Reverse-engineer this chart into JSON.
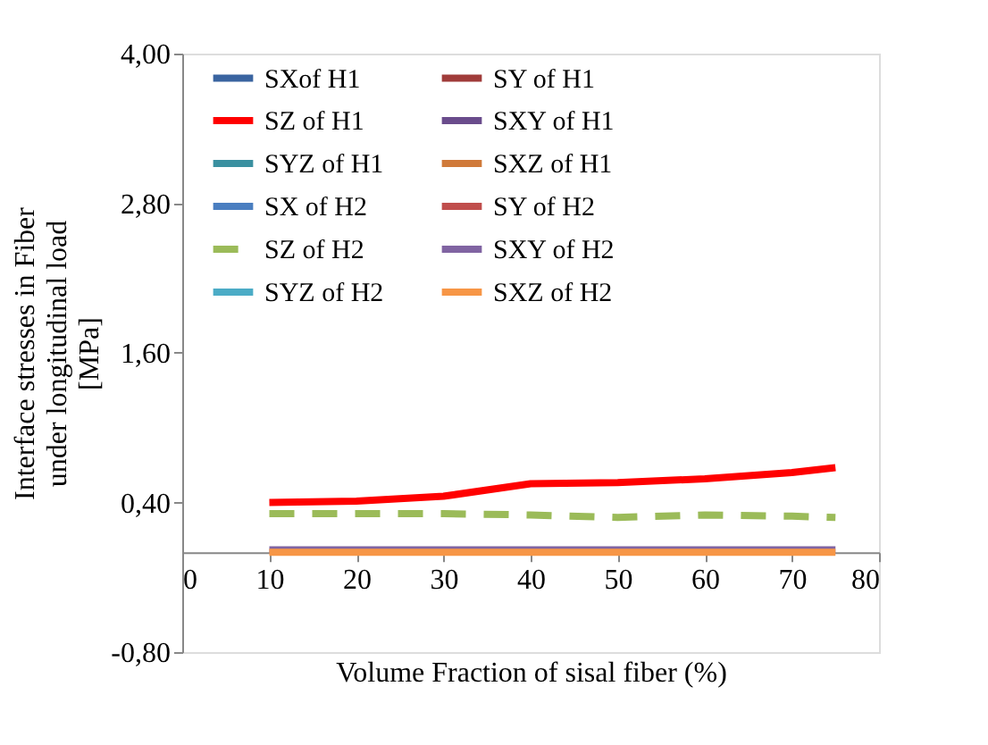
{
  "chart_data": {
    "type": "line",
    "xlabel": "Volume Fraction of sisal fiber (%)",
    "ylabel": "Interface stresses in Fiber under longitudinal load [MPa]",
    "x": [
      10,
      20,
      30,
      40,
      50,
      60,
      70,
      75
    ],
    "xlim": [
      0,
      80
    ],
    "xticks": [
      0,
      10,
      20,
      30,
      40,
      50,
      60,
      70,
      80
    ],
    "ylim": [
      -0.8,
      4.0
    ],
    "yticks": [
      {
        "value": -0.8,
        "label": "-0,80"
      },
      {
        "value": 0.4,
        "label": "0,40"
      },
      {
        "value": 1.6,
        "label": "1,60"
      },
      {
        "value": 2.8,
        "label": "2,80"
      },
      {
        "value": 4.0,
        "label": "4,00"
      }
    ],
    "grid": false,
    "legend": "top",
    "marker": "none",
    "series": [
      {
        "name": "SXof H1",
        "color": "#3a64a0",
        "values": [
          null,
          null,
          null,
          null,
          null,
          null,
          null,
          null
        ]
      },
      {
        "name": "SY of H1",
        "color": "#a03c3a",
        "values": [
          null,
          null,
          null,
          null,
          null,
          null,
          null,
          null
        ]
      },
      {
        "name": "SZ   of H1",
        "color": "#ff0000",
        "values": [
          0.4,
          0.41,
          0.45,
          0.55,
          0.56,
          0.59,
          0.64,
          0.68
        ]
      },
      {
        "name": "SXY of H1",
        "color": "#6a4c8c",
        "values": [
          null,
          null,
          null,
          null,
          null,
          null,
          null,
          null
        ]
      },
      {
        "name": "SYZ  of H1",
        "color": "#3a90a0",
        "values": [
          null,
          null,
          null,
          null,
          null,
          null,
          null,
          null
        ]
      },
      {
        "name": "SXZ of H1",
        "color": "#d07a3a",
        "values": [
          null,
          null,
          null,
          null,
          null,
          null,
          null,
          null
        ]
      },
      {
        "name": "SX of H2",
        "color": "#4a7ec0",
        "values": [
          null,
          null,
          null,
          null,
          null,
          null,
          null,
          null
        ]
      },
      {
        "name": "SY  of H2",
        "color": "#c04e4c",
        "values": [
          null,
          null,
          null,
          null,
          null,
          null,
          null,
          null
        ]
      },
      {
        "name": "SZ  of H2",
        "color": "#9bbb59",
        "line_style": "dashed",
        "values": [
          0.31,
          0.31,
          0.31,
          0.3,
          0.28,
          0.3,
          0.29,
          0.28
        ]
      },
      {
        "name": "SXY of H2",
        "color": "#8064a2",
        "values": [
          0.02,
          0.02,
          0.02,
          0.02,
          0.02,
          0.02,
          0.02,
          0.02
        ]
      },
      {
        "name": "SYZ of H2",
        "color": "#4bacc6",
        "values": [
          null,
          null,
          null,
          null,
          null,
          null,
          null,
          null
        ]
      },
      {
        "name": "SXZ of H2",
        "color": "#f79646",
        "values": [
          0.0,
          0.0,
          0.0,
          0.0,
          0.0,
          0.0,
          0.0,
          0.0
        ]
      }
    ]
  }
}
